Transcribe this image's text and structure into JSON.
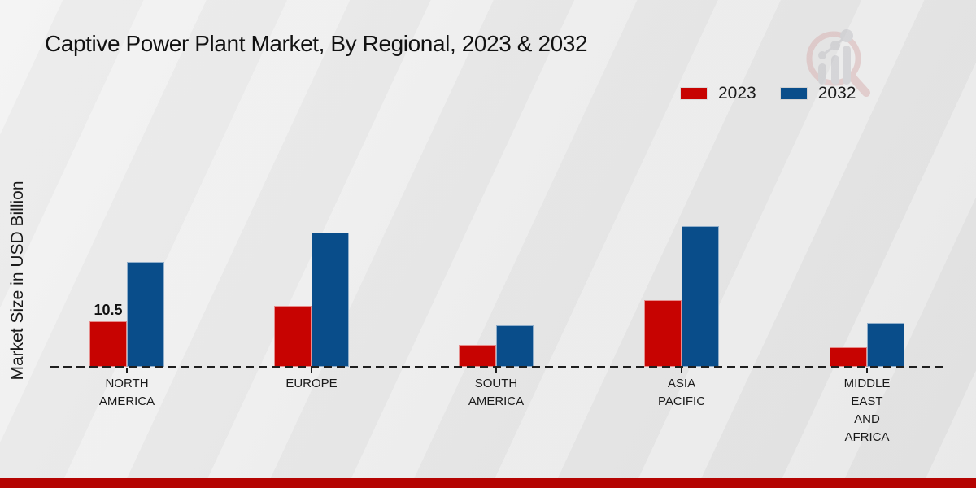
{
  "title": "Captive Power Plant Market, By Regional, 2023 & 2032",
  "ylabel": "Market Size in USD Billion",
  "legend": {
    "items": [
      {
        "label": "2023",
        "color": "#c70301"
      },
      {
        "label": "2032",
        "color": "#094d8a"
      }
    ]
  },
  "icons": {
    "watermark": "magnifier-bar-chart-logo"
  },
  "colors": {
    "background": "#eaeaea",
    "series_2023": "#c70301",
    "series_2032": "#094d8a",
    "baseline": "#1f1f1f",
    "text": "#1a1a1a",
    "bottom_band": "#b40402",
    "watermark_ring": "#d9b4b4",
    "watermark_bars": "#c4c4c9"
  },
  "chart_data": {
    "type": "bar",
    "categories": [
      "North America",
      "Europe",
      "South America",
      "Asia Pacific",
      "Middle East and Africa"
    ],
    "category_label_lines": [
      [
        "NORTH",
        "AMERICA"
      ],
      [
        "EUROPE"
      ],
      [
        "SOUTH",
        "AMERICA"
      ],
      [
        "ASIA",
        "PACIFIC"
      ],
      [
        "MIDDLE",
        "EAST",
        "AND",
        "AFRICA"
      ]
    ],
    "series": [
      {
        "name": "2023",
        "color": "#c70301",
        "values": [
          10.5,
          14.1,
          5.0,
          15.4,
          4.5
        ]
      },
      {
        "name": "2032",
        "color": "#094d8a",
        "values": [
          24.2,
          31.0,
          9.6,
          32.5,
          10.1
        ]
      }
    ],
    "bar_value_labels": [
      {
        "series_index": 0,
        "category_index": 0,
        "text": "10.5"
      }
    ],
    "ylabel": "Market Size in USD Billion",
    "xlabel": "",
    "ylim": [
      0,
      35
    ],
    "grid": false,
    "legend_position": "top-right",
    "baseline_style": "dashed"
  }
}
